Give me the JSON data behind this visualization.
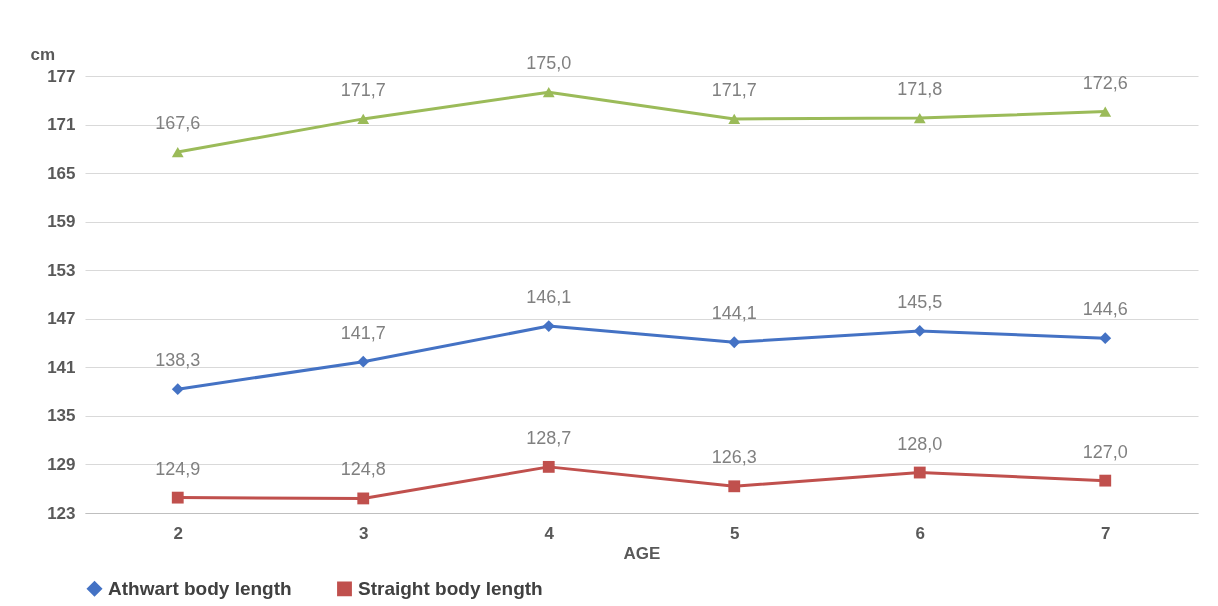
{
  "chart_data": {
    "type": "line",
    "xlabel": "AGE",
    "ylabel": "cm",
    "categories": [
      "2",
      "3",
      "4",
      "5",
      "6",
      "7"
    ],
    "ylim": [
      123,
      177
    ],
    "yticks": [
      123,
      129,
      135,
      141,
      147,
      153,
      159,
      165,
      171,
      177
    ],
    "grid": "y",
    "legend": "bottom",
    "series": [
      {
        "name": "Athwart body length",
        "color": "#4472c4",
        "marker": "diamond",
        "values": [
          138.3,
          141.7,
          146.1,
          144.1,
          145.5,
          144.6
        ],
        "value_labels": [
          "138,3",
          "141,7",
          "146,1",
          "144,1",
          "145,5",
          "144,6"
        ]
      },
      {
        "name": "Straight body length",
        "color": "#c0504d",
        "marker": "square",
        "values": [
          124.9,
          124.8,
          128.7,
          126.3,
          128.0,
          127.0
        ],
        "value_labels": [
          "124,9",
          "124,8",
          "128,7",
          "126,3",
          "128,0",
          "127,0"
        ]
      },
      {
        "color": "#9bbb59",
        "marker": "triangle",
        "values": [
          167.6,
          171.7,
          175.0,
          171.7,
          171.8,
          172.6
        ],
        "value_labels": [
          "167,6",
          "171,7",
          "175,0",
          "171,7",
          "171,8",
          "172,6"
        ]
      }
    ]
  }
}
